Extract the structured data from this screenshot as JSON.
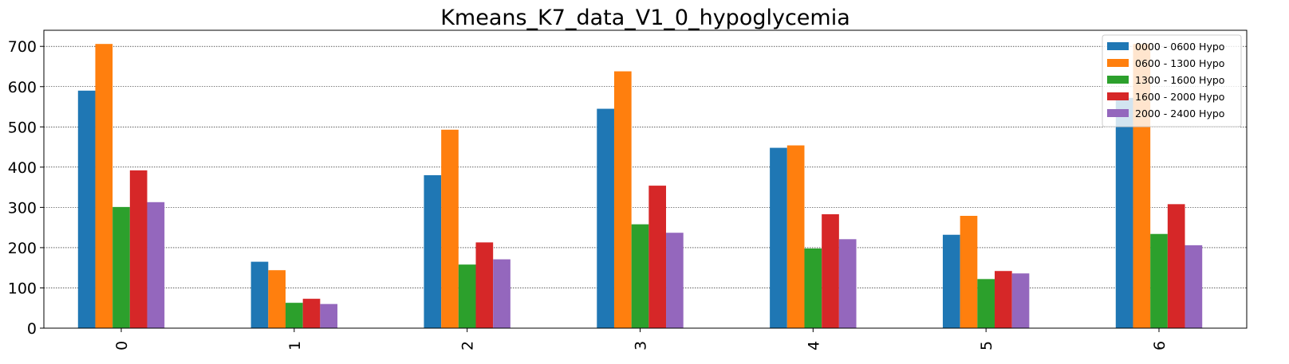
{
  "chart_data": {
    "type": "bar",
    "title": "Kmeans_K7_data_V1_0_hypoglycemia",
    "xlabel": "",
    "ylabel": "",
    "categories": [
      "0",
      "1",
      "2",
      "3",
      "4",
      "5",
      "6"
    ],
    "ylim": [
      0,
      740
    ],
    "yticks": [
      0,
      100,
      200,
      300,
      400,
      500,
      600,
      700
    ],
    "grid": "horizontal dotted",
    "legend_position": "top-right",
    "series": [
      {
        "name": "0000 - 0600 Hypo",
        "color": "#1f77b4",
        "values": [
          590,
          165,
          380,
          545,
          448,
          232,
          572
        ]
      },
      {
        "name": "0600 - 1300 Hypo",
        "color": "#ff7f0e",
        "values": [
          706,
          144,
          493,
          638,
          454,
          279,
          706
        ]
      },
      {
        "name": "1300 - 1600 Hypo",
        "color": "#2ca02c",
        "values": [
          301,
          63,
          158,
          258,
          198,
          122,
          234
        ]
      },
      {
        "name": "1600 - 2000 Hypo",
        "color": "#d62728",
        "values": [
          392,
          73,
          213,
          354,
          283,
          142,
          308
        ]
      },
      {
        "name": "2000 - 2400 Hypo",
        "color": "#9467bd",
        "values": [
          313,
          60,
          171,
          237,
          221,
          136,
          206
        ]
      }
    ]
  }
}
